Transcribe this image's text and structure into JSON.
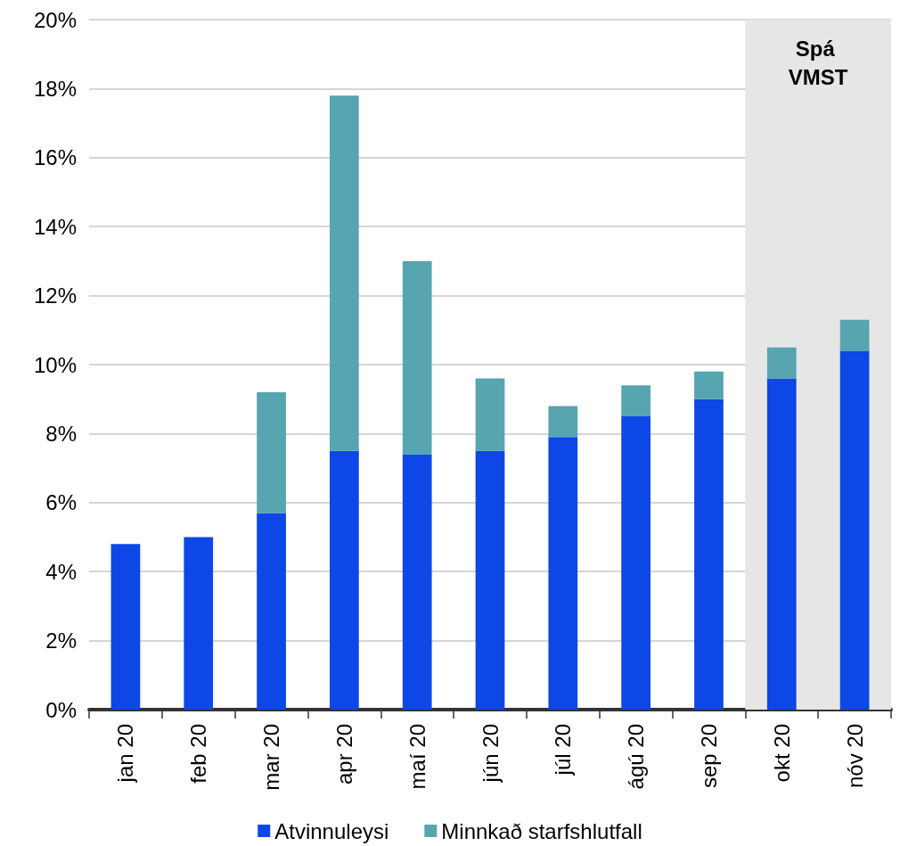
{
  "chart_data": {
    "type": "bar",
    "stacked": true,
    "categories": [
      "jan 20",
      "feb 20",
      "mar 20",
      "apr 20",
      "maí 20",
      "jún 20",
      "júl 20",
      "ágú 20",
      "sep 20",
      "okt 20",
      "nóv 20"
    ],
    "series": [
      {
        "name": "Atvinnuleysi",
        "color": "#0d47e6",
        "values": [
          4.8,
          5.0,
          5.7,
          7.5,
          7.4,
          7.5,
          7.9,
          8.5,
          9.0,
          9.6,
          10.4
        ]
      },
      {
        "name": "Minnkað starfshlutfall",
        "color": "#56a5b0",
        "values": [
          null,
          null,
          3.5,
          10.3,
          5.6,
          2.1,
          0.9,
          0.9,
          0.8,
          0.9,
          0.9
        ]
      }
    ],
    "ylim": [
      0,
      20
    ],
    "yticks": [
      {
        "value": 0,
        "label": "0%"
      },
      {
        "value": 2,
        "label": "2%"
      },
      {
        "value": 4,
        "label": "4%"
      },
      {
        "value": 6,
        "label": "6%"
      },
      {
        "value": 8,
        "label": "8%"
      },
      {
        "value": 10,
        "label": "10%"
      },
      {
        "value": 12,
        "label": "12%"
      },
      {
        "value": 14,
        "label": "14%"
      },
      {
        "value": 16,
        "label": "16%"
      },
      {
        "value": 18,
        "label": "18%"
      },
      {
        "value": 20,
        "label": "20%"
      }
    ],
    "bands": [
      {
        "axis": "x",
        "from": "okt 20",
        "to": "nóv 20",
        "label": "Spá VMST",
        "color": "#e6e6e6"
      }
    ],
    "grid": "y",
    "legend": "bottom"
  }
}
